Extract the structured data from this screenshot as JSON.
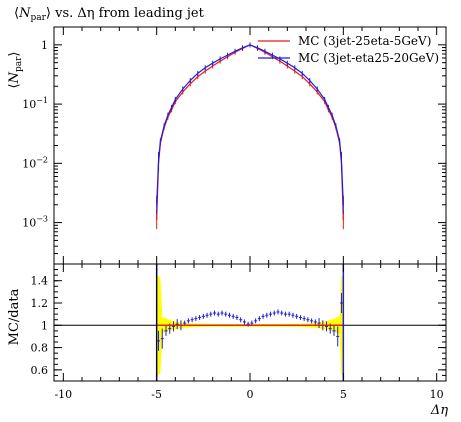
{
  "chart_data": {
    "type": "line",
    "title_parts": {
      "left": "⟨",
      "symbol": "N",
      "sub": "par",
      "rest": "⟩ vs. Δη from leading jet"
    },
    "ylabel_top_parts": {
      "left": "⟨",
      "symbol": "N",
      "sub": "par",
      "right": "⟩"
    },
    "ylabel_bottom": "MC/data",
    "xlabel": "Δη",
    "top_panel": {
      "yscale": "log",
      "ylim": [
        0.0002,
        2.0
      ],
      "yticks": [
        0.001,
        0.01,
        0.1,
        1
      ],
      "ytick_labels": [
        "10−3",
        "10−2",
        "10−1",
        "1"
      ]
    },
    "bottom_panel": {
      "ylim": [
        0.5,
        1.55
      ],
      "yticks": [
        0.6,
        0.8,
        1.0,
        1.2,
        1.4
      ],
      "ytick_labels": [
        "0.6",
        "0.8",
        "1",
        "1.2",
        "1.4"
      ],
      "reference_line": 1.0,
      "band_color": "#ffff00"
    },
    "xlim": [
      -10.5,
      10.5
    ],
    "xticks": [
      -10,
      -5,
      0,
      5,
      10
    ],
    "xtick_labels": [
      "-10",
      "-5",
      "0",
      "5",
      "10"
    ],
    "series": [
      {
        "name": "MC (3jet-25eta-5GeV)",
        "color": "#e8191c",
        "x": [
          -5.0,
          -4.9,
          -4.8,
          -4.6,
          -4.4,
          -4.2,
          -4.0,
          -3.6,
          -3.2,
          -2.8,
          -2.4,
          -2.0,
          -1.6,
          -1.2,
          -0.8,
          -0.4,
          0.0,
          0.4,
          0.8,
          1.2,
          1.6,
          2.0,
          2.4,
          2.8,
          3.2,
          3.6,
          4.0,
          4.2,
          4.4,
          4.6,
          4.8,
          4.9,
          5.0
        ],
        "y": [
          0.0011,
          0.01,
          0.022,
          0.04,
          0.06,
          0.08,
          0.11,
          0.16,
          0.22,
          0.29,
          0.36,
          0.44,
          0.53,
          0.63,
          0.75,
          0.87,
          1.0,
          0.87,
          0.75,
          0.63,
          0.53,
          0.44,
          0.36,
          0.29,
          0.22,
          0.16,
          0.11,
          0.08,
          0.06,
          0.04,
          0.022,
          0.01,
          0.0011
        ]
      },
      {
        "name": "MC (3jet-eta25-20GeV)",
        "color": "#1f1fd9",
        "x": [
          -5.0,
          -4.9,
          -4.8,
          -4.6,
          -4.4,
          -4.2,
          -4.0,
          -3.6,
          -3.2,
          -2.8,
          -2.4,
          -2.0,
          -1.6,
          -1.2,
          -0.8,
          -0.4,
          0.0,
          0.4,
          0.8,
          1.2,
          1.6,
          2.0,
          2.4,
          2.8,
          3.2,
          3.6,
          4.0,
          4.2,
          4.4,
          4.6,
          4.8,
          4.9,
          5.0
        ],
        "y": [
          0.002,
          0.011,
          0.024,
          0.043,
          0.065,
          0.088,
          0.12,
          0.18,
          0.25,
          0.33,
          0.41,
          0.49,
          0.58,
          0.67,
          0.78,
          0.89,
          1.0,
          0.89,
          0.78,
          0.67,
          0.58,
          0.49,
          0.41,
          0.33,
          0.25,
          0.18,
          0.12,
          0.088,
          0.065,
          0.043,
          0.024,
          0.011,
          0.002
        ],
        "ratio_x": [
          -4.9,
          -4.7,
          -4.5,
          -4.3,
          -4.1,
          -3.9,
          -3.7,
          -3.5,
          -3.3,
          -3.1,
          -2.9,
          -2.7,
          -2.5,
          -2.3,
          -2.1,
          -1.9,
          -1.7,
          -1.5,
          -1.3,
          -1.1,
          -0.9,
          -0.7,
          -0.5,
          -0.3,
          -0.1,
          0.1,
          0.3,
          0.5,
          0.7,
          0.9,
          1.1,
          1.3,
          1.5,
          1.7,
          1.9,
          2.1,
          2.3,
          2.5,
          2.7,
          2.9,
          3.1,
          3.3,
          3.5,
          3.7,
          3.9,
          4.1,
          4.3,
          4.5,
          4.7,
          4.9
        ],
        "ratio_y": [
          0.86,
          0.88,
          0.95,
          0.97,
          0.99,
          1.01,
          1.0,
          1.02,
          1.04,
          1.05,
          1.06,
          1.07,
          1.08,
          1.09,
          1.1,
          1.11,
          1.1,
          1.11,
          1.1,
          1.09,
          1.08,
          1.07,
          1.05,
          1.03,
          1.01,
          1.02,
          1.04,
          1.06,
          1.08,
          1.09,
          1.1,
          1.11,
          1.12,
          1.11,
          1.1,
          1.1,
          1.09,
          1.08,
          1.07,
          1.06,
          1.05,
          1.04,
          1.03,
          1.02,
          1.0,
          0.99,
          0.97,
          0.95,
          0.9,
          1.2
        ]
      }
    ]
  }
}
